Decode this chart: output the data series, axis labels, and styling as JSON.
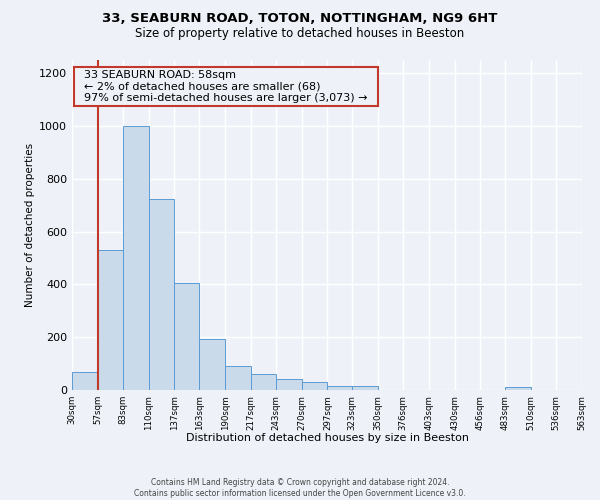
{
  "title": "33, SEABURN ROAD, TOTON, NOTTINGHAM, NG9 6HT",
  "subtitle": "Size of property relative to detached houses in Beeston",
  "xlabel": "Distribution of detached houses by size in Beeston",
  "ylabel": "Number of detached properties",
  "annotation_title": "33 SEABURN ROAD: 58sqm",
  "annotation_line1": "← 2% of detached houses are smaller (68)",
  "annotation_line2": "97% of semi-detached houses are larger (3,073) →",
  "vline_x": 57,
  "bar_edges": [
    30,
    57,
    83,
    110,
    137,
    163,
    190,
    217,
    243,
    270,
    297,
    323,
    350,
    376,
    403,
    430,
    456,
    483,
    510,
    536,
    563
  ],
  "bar_heights": [
    70,
    530,
    1000,
    725,
    405,
    195,
    90,
    60,
    42,
    30,
    17,
    17,
    0,
    0,
    0,
    0,
    0,
    10,
    0,
    0,
    5
  ],
  "bar_color": "#c9daea",
  "bar_edge_color": "#5b9bd5",
  "vline_color": "#c0392b",
  "annotation_box_edge_color": "#c0392b",
  "background_color": "#eef2f8",
  "grid_color": "#ffffff",
  "ylim": [
    0,
    1250
  ],
  "yticks": [
    0,
    200,
    400,
    600,
    800,
    1000,
    1200
  ],
  "footer_line1": "Contains HM Land Registry data © Crown copyright and database right 2024.",
  "footer_line2": "Contains public sector information licensed under the Open Government Licence v3.0."
}
